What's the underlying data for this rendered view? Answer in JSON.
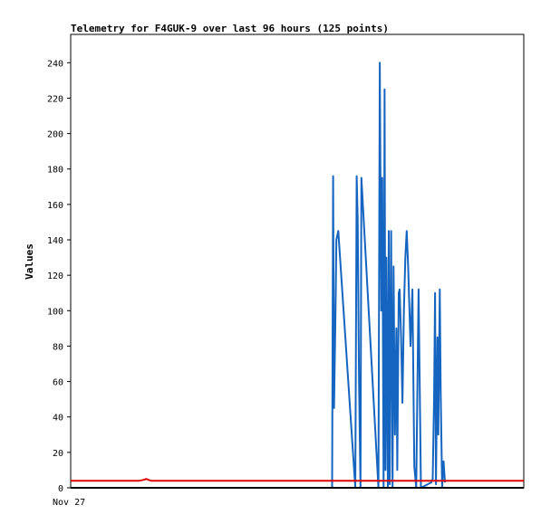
{
  "chart_data": {
    "type": "line",
    "title": "Telemetry for F4GUK-9 over last 96 hours (125 points)",
    "xlabel": "",
    "ylabel": "Values",
    "x_tick_labels": [
      "Nov 27"
    ],
    "y_ticks": [
      0,
      20,
      40,
      60,
      80,
      100,
      120,
      140,
      160,
      180,
      200,
      220,
      240
    ],
    "ylim": [
      0,
      256
    ],
    "xlim_hours": [
      0,
      96
    ],
    "grid": false,
    "legend": "none",
    "colors": {
      "series_blue": "#1565c0",
      "series_red": "#dd0000",
      "series_black": "#000000"
    },
    "series": [
      {
        "x_hours": [
          55.4,
          55.6,
          55.8,
          56.1,
          56.3,
          56.7,
          60.3,
          60.6,
          60.8,
          61.1,
          61.4,
          61.6,
          65.2,
          65.5,
          65.8,
          66.0,
          66.3,
          66.5,
          66.7,
          66.9,
          67.2,
          67.4,
          67.6,
          67.9,
          68.2,
          68.4,
          68.7,
          69.0,
          69.2,
          69.5,
          69.7,
          70.0,
          70.3,
          70.6,
          70.9,
          71.2,
          71.5,
          72.0,
          72.4,
          72.8,
          73.2,
          73.7,
          74.2,
          76.4,
          76.7,
          77.0,
          77.2,
          77.4,
          77.7,
          77.9,
          78.2,
          78.4,
          78.7,
          79.0,
          79.3
        ],
        "values": [
          0,
          176,
          45,
          98,
          140,
          145,
          0,
          176,
          152,
          60,
          0,
          175,
          0,
          240,
          100,
          175,
          0,
          225,
          10,
          130,
          0,
          145,
          2,
          145,
          0,
          125,
          30,
          90,
          10,
          110,
          112,
          85,
          48,
          100,
          130,
          145,
          125,
          80,
          112,
          12,
          0,
          112,
          0,
          3,
          5,
          50,
          110,
          2,
          85,
          30,
          112,
          55,
          0,
          15,
          3
        ]
      },
      {
        "x_hours": [
          0,
          14.5,
          15.5,
          16.0,
          16.5,
          17.0,
          18.0,
          96
        ],
        "values": [
          4,
          4,
          4.5,
          5,
          4.5,
          4,
          4,
          4
        ]
      },
      {
        "x_hours": [
          0,
          96
        ],
        "values": [
          0,
          0
        ]
      }
    ]
  }
}
